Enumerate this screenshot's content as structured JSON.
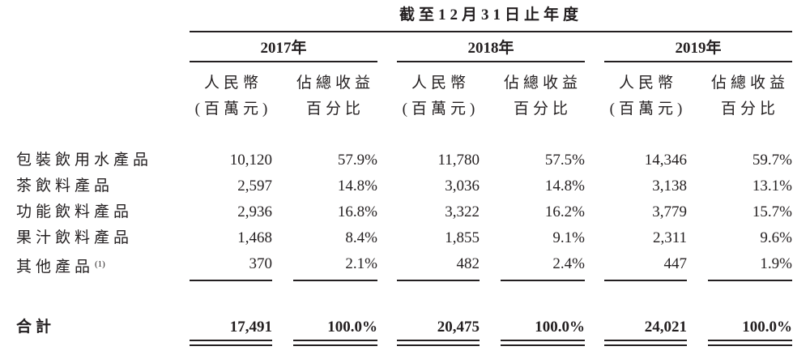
{
  "header": {
    "period_label": "截至12月31日止年度"
  },
  "years": [
    {
      "label": "2017年",
      "col_amount": "人民幣\n(百萬元)",
      "col_pct": "佔總收益\n百分比"
    },
    {
      "label": "2018年",
      "col_amount": "人民幣\n(百萬元)",
      "col_pct": "佔總收益\n百分比"
    },
    {
      "label": "2019年",
      "col_amount": "人民幣\n(百萬元)",
      "col_pct": "佔總收益\n百分比"
    }
  ],
  "col_headers": {
    "amount_line1": "人民幣",
    "amount_line2": "(百萬元)",
    "pct_line1": "佔總收益",
    "pct_line2": "百分比"
  },
  "rows": [
    {
      "label": "包裝飲用水產品",
      "note": "",
      "values": [
        "10,120",
        "57.9%",
        "11,780",
        "57.5%",
        "14,346",
        "59.7%"
      ]
    },
    {
      "label": "茶飲料產品",
      "note": "",
      "values": [
        "2,597",
        "14.8%",
        "3,036",
        "14.8%",
        "3,138",
        "13.1%"
      ]
    },
    {
      "label": "功能飲料產品",
      "note": "",
      "values": [
        "2,936",
        "16.8%",
        "3,322",
        "16.2%",
        "3,779",
        "15.7%"
      ]
    },
    {
      "label": "果汁飲料產品",
      "note": "",
      "values": [
        "1,468",
        "8.4%",
        "1,855",
        "9.1%",
        "2,311",
        "9.6%"
      ]
    },
    {
      "label": "其他產品",
      "note": "(1)",
      "values": [
        "370",
        "2.1%",
        "482",
        "2.4%",
        "447",
        "1.9%"
      ]
    }
  ],
  "total": {
    "label": "合計",
    "values": [
      "17,491",
      "100.0%",
      "20,475",
      "100.0%",
      "24,021",
      "100.0%"
    ]
  }
}
